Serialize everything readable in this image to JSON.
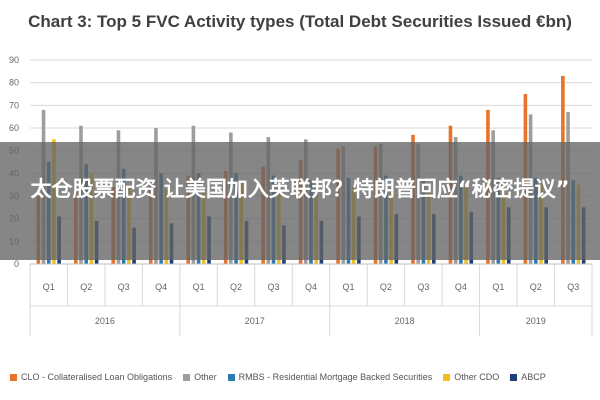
{
  "chart_data": {
    "type": "bar",
    "title": "Chart 3: Top 5 FVC Activity types (Total Debt Securities Issued €bn)",
    "ylim": [
      0,
      90
    ],
    "yticks": [
      0,
      10,
      20,
      30,
      40,
      50,
      60,
      70,
      80,
      90
    ],
    "grid": true,
    "legend_position": "bottom",
    "categories": [
      "Q1",
      "Q2",
      "Q3",
      "Q4",
      "Q1",
      "Q2",
      "Q3",
      "Q4",
      "Q1",
      "Q2",
      "Q3",
      "Q4",
      "Q1",
      "Q2",
      "Q3"
    ],
    "groups": [
      {
        "label": "2016",
        "count": 4
      },
      {
        "label": "2017",
        "count": 4
      },
      {
        "label": "2018",
        "count": 4
      },
      {
        "label": "2019",
        "count": 3
      }
    ],
    "series": [
      {
        "name": "CLO - Collateralised Loan Obligations",
        "color": "#e8732a",
        "values": [
          30,
          32,
          34,
          36,
          39,
          41,
          43,
          46,
          51,
          52,
          57,
          61,
          68,
          75,
          83
        ]
      },
      {
        "name": "Other",
        "color": "#9e9e9e",
        "values": [
          68,
          61,
          59,
          60,
          61,
          58,
          56,
          55,
          52,
          53,
          53,
          56,
          59,
          66,
          67
        ]
      },
      {
        "name": "RMBS - Residential Mortgage Backed Securities",
        "color": "#2e7ab3",
        "values": [
          45,
          44,
          42,
          40,
          40,
          40,
          39,
          37,
          38,
          39,
          38,
          39,
          38,
          38,
          37
        ]
      },
      {
        "name": "Other CDO",
        "color": "#f2bf1f",
        "values": [
          55,
          40,
          35,
          33,
          34,
          36,
          36,
          35,
          34,
          33,
          34,
          34,
          35,
          35,
          35
        ]
      },
      {
        "name": "ABCP",
        "color": "#1f3f7a",
        "values": [
          21,
          19,
          16,
          18,
          21,
          19,
          17,
          19,
          21,
          22,
          22,
          23,
          25,
          25,
          25
        ]
      }
    ]
  },
  "overlay": {
    "text": "太仓股票配资 让美国加入英联邦？特朗普回应“秘密提议”"
  }
}
